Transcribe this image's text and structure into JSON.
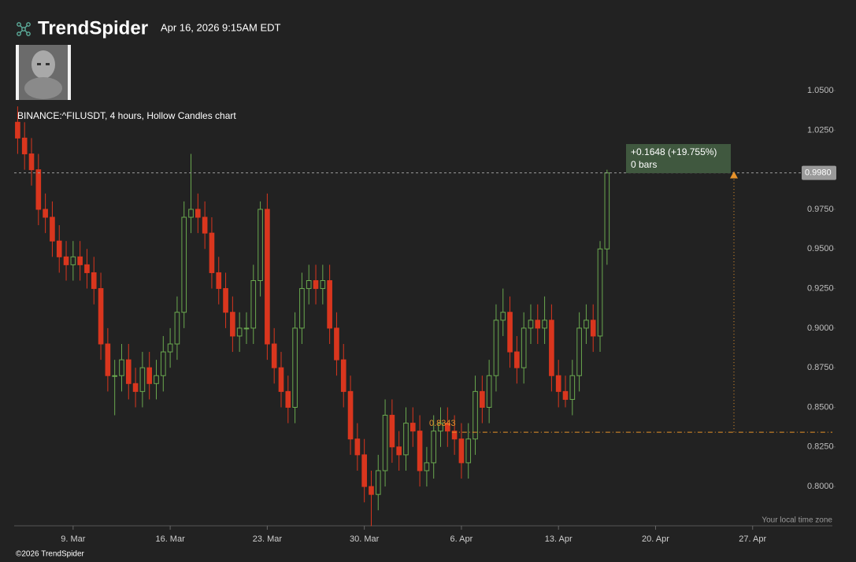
{
  "header": {
    "brand": "TrendSpider",
    "timestamp": "Apr 16, 2026 9:15AM EDT"
  },
  "footer": {
    "copyright": "©2026 TrendSpider",
    "timezone_note": "Your local time zone"
  },
  "chart_data": {
    "type": "candlestick",
    "title": "BINANCE:^FILUSDT, 4 hours, Hollow Candles chart",
    "up_color": "#6aa84f",
    "down_color": "#d9361e",
    "categories": [
      null,
      null,
      null,
      null,
      null,
      null,
      null,
      null,
      "9. Mar",
      null,
      null,
      null,
      null,
      null,
      null,
      null,
      null,
      null,
      null,
      null,
      null,
      null,
      "16. Mar",
      null,
      null,
      null,
      null,
      null,
      null,
      null,
      null,
      null,
      null,
      null,
      null,
      null,
      "23. Mar",
      null,
      null,
      null,
      null,
      null,
      null,
      null,
      null,
      null,
      null,
      null,
      null,
      null,
      "30. Mar",
      null,
      null,
      null,
      null,
      null,
      null,
      null,
      null,
      null,
      null,
      null,
      null,
      null,
      "6. Apr",
      null,
      null,
      null,
      null,
      null,
      null,
      null,
      null,
      null,
      null,
      null,
      null,
      null,
      "13. Apr",
      null,
      null,
      null,
      null,
      null,
      null,
      null,
      null,
      null,
      null,
      null,
      null,
      null,
      "20. Apr",
      null,
      null,
      null,
      null,
      null,
      null,
      null,
      null,
      null,
      null,
      null,
      null,
      null,
      "27. Apr",
      null,
      null,
      null,
      null,
      null,
      null,
      null,
      null,
      null,
      null,
      null
    ],
    "open": [
      1.03,
      1.02,
      1.01,
      1.0,
      0.975,
      0.97,
      0.955,
      0.945,
      0.94,
      0.945,
      0.94,
      0.935,
      0.925,
      0.89,
      0.87,
      0.87,
      0.88,
      0.865,
      0.86,
      0.875,
      0.865,
      0.87,
      0.885,
      0.89,
      0.91,
      0.97,
      0.975,
      0.97,
      0.96,
      0.935,
      0.925,
      0.91,
      0.895,
      0.9,
      0.9,
      0.93,
      0.975,
      0.89,
      0.875,
      0.86,
      0.85,
      0.9,
      0.925,
      0.93,
      0.925,
      0.93,
      0.9,
      0.88,
      0.86,
      0.83,
      0.82,
      0.8,
      0.795,
      0.81,
      0.845,
      0.825,
      0.82,
      0.84,
      0.835,
      0.81,
      0.815,
      0.835,
      0.84,
      0.835,
      0.83,
      0.815,
      0.83,
      0.86,
      0.85,
      0.87,
      0.905,
      0.91,
      0.885,
      0.875,
      0.9,
      0.905,
      0.9,
      0.905,
      0.87,
      0.86,
      0.855,
      0.87,
      0.9,
      0.905,
      0.895,
      0.95,
      null,
      null,
      null,
      null,
      null,
      null,
      null,
      null,
      null,
      null,
      null,
      null,
      null,
      null,
      null,
      null,
      null,
      null,
      null,
      null,
      null,
      null,
      null,
      null,
      null,
      null,
      null,
      null,
      null,
      null,
      null,
      null
    ],
    "high": [
      1.04,
      1.03,
      1.02,
      1.01,
      0.985,
      0.98,
      0.965,
      0.955,
      0.955,
      0.955,
      0.95,
      0.945,
      0.935,
      0.9,
      0.88,
      0.89,
      0.89,
      0.875,
      0.885,
      0.885,
      0.88,
      0.895,
      0.9,
      0.92,
      0.98,
      1.01,
      0.985,
      0.98,
      0.97,
      0.945,
      0.935,
      0.92,
      0.91,
      0.91,
      0.94,
      0.98,
      0.985,
      0.9,
      0.885,
      0.87,
      0.91,
      0.935,
      0.94,
      0.94,
      0.94,
      0.94,
      0.91,
      0.89,
      0.87,
      0.84,
      0.83,
      0.81,
      0.82,
      0.855,
      0.855,
      0.835,
      0.85,
      0.85,
      0.845,
      0.825,
      0.845,
      0.85,
      0.85,
      0.845,
      0.84,
      0.84,
      0.87,
      0.87,
      0.88,
      0.915,
      0.925,
      0.92,
      0.895,
      0.91,
      0.915,
      0.915,
      0.92,
      0.915,
      0.88,
      0.87,
      0.88,
      0.91,
      0.915,
      0.915,
      0.955,
      1.0,
      null,
      null,
      null,
      null,
      null,
      null,
      null,
      null,
      null,
      null,
      null,
      null,
      null,
      null,
      null,
      null,
      null,
      null,
      null,
      null,
      null,
      null,
      null,
      null,
      null,
      null,
      null,
      null,
      null,
      null,
      null,
      null
    ],
    "low": [
      1.01,
      1.0,
      0.99,
      0.965,
      0.96,
      0.945,
      0.935,
      0.93,
      0.93,
      0.93,
      0.925,
      0.915,
      0.88,
      0.86,
      0.845,
      0.86,
      0.855,
      0.85,
      0.85,
      0.855,
      0.855,
      0.86,
      0.875,
      0.88,
      0.9,
      0.96,
      0.96,
      0.95,
      0.925,
      0.915,
      0.9,
      0.885,
      0.885,
      0.89,
      0.89,
      0.92,
      0.88,
      0.865,
      0.85,
      0.84,
      0.84,
      0.89,
      0.915,
      0.915,
      0.915,
      0.89,
      0.87,
      0.85,
      0.82,
      0.81,
      0.79,
      0.775,
      0.785,
      0.8,
      0.815,
      0.81,
      0.81,
      0.825,
      0.8,
      0.8,
      0.805,
      0.825,
      0.825,
      0.82,
      0.805,
      0.805,
      0.82,
      0.84,
      0.84,
      0.86,
      0.895,
      0.875,
      0.865,
      0.865,
      0.89,
      0.89,
      0.89,
      0.86,
      0.85,
      0.85,
      0.845,
      0.86,
      0.89,
      0.885,
      0.885,
      0.94,
      null,
      null,
      null,
      null,
      null,
      null,
      null,
      null,
      null,
      null,
      null,
      null,
      null,
      null,
      null,
      null,
      null,
      null,
      null,
      null,
      null,
      null,
      null,
      null,
      null,
      null,
      null,
      null,
      null,
      null,
      null,
      null
    ],
    "close": [
      1.02,
      1.01,
      1.0,
      0.975,
      0.97,
      0.955,
      0.945,
      0.94,
      0.945,
      0.94,
      0.935,
      0.925,
      0.89,
      0.87,
      0.87,
      0.88,
      0.865,
      0.86,
      0.875,
      0.865,
      0.87,
      0.885,
      0.89,
      0.91,
      0.97,
      0.975,
      0.97,
      0.96,
      0.935,
      0.925,
      0.91,
      0.895,
      0.9,
      0.9,
      0.93,
      0.975,
      0.89,
      0.875,
      0.86,
      0.85,
      0.9,
      0.925,
      0.93,
      0.925,
      0.93,
      0.9,
      0.88,
      0.86,
      0.83,
      0.82,
      0.8,
      0.795,
      0.81,
      0.845,
      0.825,
      0.82,
      0.84,
      0.835,
      0.81,
      0.815,
      0.835,
      0.84,
      0.835,
      0.83,
      0.815,
      0.83,
      0.86,
      0.85,
      0.87,
      0.905,
      0.91,
      0.885,
      0.875,
      0.9,
      0.905,
      0.9,
      0.905,
      0.87,
      0.86,
      0.855,
      0.87,
      0.9,
      0.905,
      0.895,
      0.95,
      0.998,
      null,
      null,
      null,
      null,
      null,
      null,
      null,
      null,
      null,
      null,
      null,
      null,
      null,
      null,
      null,
      null,
      null,
      null,
      null,
      null,
      null,
      null,
      null,
      null,
      null,
      null,
      null,
      null,
      null,
      null,
      null,
      null
    ],
    "ylim": [
      0.7752,
      1.1022
    ],
    "yticks": [
      {
        "value": 0.8,
        "label": "0.8000"
      },
      {
        "value": 0.825,
        "label": "0.8250"
      },
      {
        "value": 0.85,
        "label": "0.8500"
      },
      {
        "value": 0.875,
        "label": "0.8750"
      },
      {
        "value": 0.9,
        "label": "0.9000"
      },
      {
        "value": 0.925,
        "label": "0.9250"
      },
      {
        "value": 0.95,
        "label": "0.9500"
      },
      {
        "value": 0.975,
        "label": "0.9750"
      },
      {
        "value": 1.0,
        "label": "1.0000"
      },
      {
        "value": 1.025,
        "label": "1.0250"
      },
      {
        "value": 1.05,
        "label": "1.0500"
      }
    ],
    "last_price": {
      "value": 0.998,
      "label": "0.9980"
    },
    "reference_level": {
      "value": 0.8343,
      "label": "0.8343"
    },
    "measure": {
      "change": "+0.1648 (+19.755%)",
      "bars": "0 bars"
    }
  }
}
